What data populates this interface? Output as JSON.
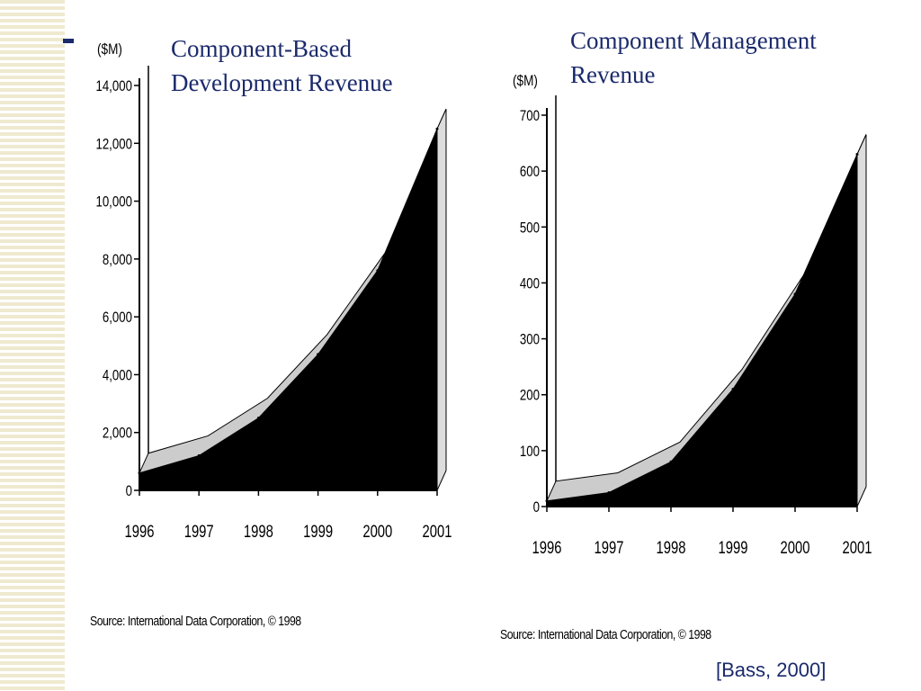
{
  "slide": {
    "bullet": "-",
    "citation": "[Bass, 2000]"
  },
  "chart_data": [
    {
      "type": "area",
      "title": "Component-Based\nDevelopment Revenue",
      "ylabel": "($M)",
      "xlabel": "",
      "x": [
        "1996",
        "1997",
        "1998",
        "1999",
        "2000",
        "2001"
      ],
      "values": [
        600,
        1200,
        2500,
        4700,
        7600,
        12500
      ],
      "ylim": [
        0,
        14000
      ],
      "yticks": [
        "0",
        "2,000",
        "4,000",
        "6,000",
        "8,000",
        "10,000",
        "12,000",
        "14,000"
      ],
      "ytick_values": [
        0,
        2000,
        4000,
        6000,
        8000,
        10000,
        12000,
        14000
      ],
      "source": "Source: International Data Corporation, © 1998",
      "colors": {
        "fill": "#000000",
        "top": "#cccccc"
      }
    },
    {
      "type": "area",
      "title": "Component Management\nRevenue",
      "ylabel": "($M)",
      "xlabel": "",
      "x": [
        "1996",
        "1997",
        "1998",
        "1999",
        "2000",
        "2001"
      ],
      "values": [
        10,
        25,
        80,
        210,
        380,
        630
      ],
      "ylim": [
        0,
        700
      ],
      "yticks": [
        "0",
        "100",
        "200",
        "300",
        "400",
        "500",
        "600",
        "700"
      ],
      "ytick_values": [
        0,
        100,
        200,
        300,
        400,
        500,
        600,
        700
      ],
      "source": "Source: International Data Corporation, © 1998",
      "colors": {
        "fill": "#000000",
        "top": "#cccccc"
      }
    }
  ]
}
